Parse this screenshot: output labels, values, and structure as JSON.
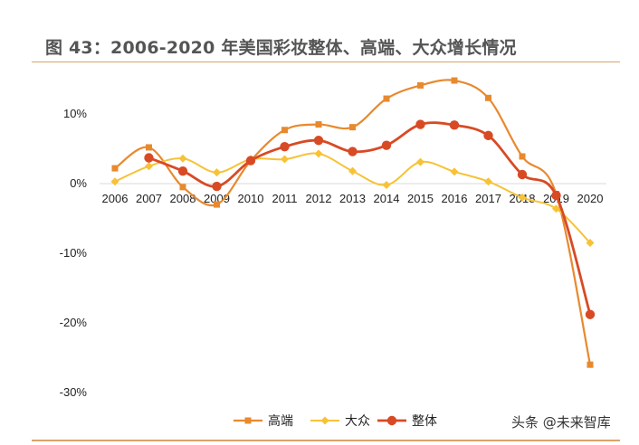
{
  "title": "图 43：2006-2020 年美国彩妆整体、高端、大众增长情况",
  "watermark": "头条 @未来智库",
  "chart_data": {
    "type": "line",
    "title": "图 43：2006-2020 年美国彩妆整体、高端、大众增长情况",
    "x": [
      "2006",
      "2007",
      "2008",
      "2009",
      "2010",
      "2011",
      "2012",
      "2013",
      "2014",
      "2015",
      "2016",
      "2017",
      "2018",
      "2019",
      "2020"
    ],
    "yticks": [
      10,
      0,
      -10,
      -20,
      -30
    ],
    "ytick_labels": [
      "10%",
      "0%",
      "-10%",
      "-20%",
      "-30%"
    ],
    "ylim": [
      -30,
      15
    ],
    "legend_position": "bottom",
    "grid": false,
    "series": [
      {
        "name": "高端",
        "color": "#e8892e",
        "marker": "square",
        "values": [
          2.2,
          5.2,
          -0.5,
          -3.0,
          3.3,
          7.7,
          8.5,
          8.1,
          12.2,
          14.1,
          14.8,
          12.3,
          3.9,
          -1.5,
          -26.0
        ]
      },
      {
        "name": "大众",
        "color": "#f7c236",
        "marker": "diamond",
        "values": [
          0.3,
          2.5,
          3.6,
          1.6,
          3.5,
          3.5,
          4.3,
          1.8,
          -0.2,
          3.1,
          1.7,
          0.3,
          -2.0,
          -3.6,
          -8.5
        ]
      },
      {
        "name": "整体",
        "color": "#d84a24",
        "marker": "circle",
        "values": [
          null,
          3.7,
          1.8,
          -0.4,
          3.3,
          5.3,
          6.2,
          4.6,
          5.5,
          8.5,
          8.4,
          6.9,
          1.3,
          -1.7,
          -18.8
        ]
      }
    ]
  }
}
